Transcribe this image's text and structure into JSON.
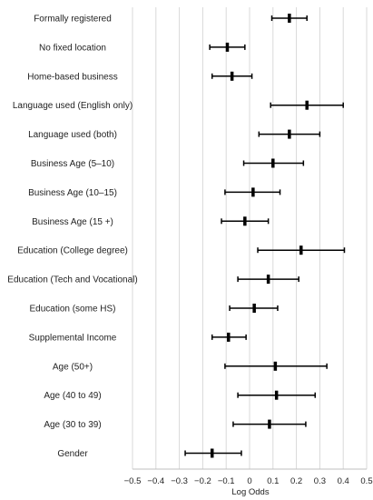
{
  "chart_data": {
    "type": "forest",
    "xlabel": "Log Odds",
    "xlim": [
      -0.5,
      0.5
    ],
    "xticks": [
      -0.5,
      -0.4,
      -0.3,
      -0.2,
      -0.1,
      0,
      0.1,
      0.2,
      0.3,
      0.4,
      0.5
    ],
    "xtick_labels": [
      "−0.5",
      "−0.4",
      "−0.3",
      "−0.2",
      "−0.1",
      "0",
      "0.1",
      "0.2",
      "0.3",
      "0.4",
      "0.5"
    ],
    "grid": true,
    "items": [
      {
        "label": "Formally registered",
        "estimate": 0.17,
        "lower": 0.095,
        "upper": 0.245
      },
      {
        "label": "No fixed location",
        "estimate": -0.095,
        "lower": -0.17,
        "upper": -0.02
      },
      {
        "label": "Home-based business",
        "estimate": -0.075,
        "lower": -0.16,
        "upper": 0.01
      },
      {
        "label": "Language used (English only)",
        "estimate": 0.245,
        "lower": 0.09,
        "upper": 0.4
      },
      {
        "label": "Language used (both)",
        "estimate": 0.17,
        "lower": 0.04,
        "upper": 0.3
      },
      {
        "label": "Business Age (5–10)",
        "estimate": 0.1,
        "lower": -0.025,
        "upper": 0.23
      },
      {
        "label": "Business Age (10–15)",
        "estimate": 0.015,
        "lower": -0.105,
        "upper": 0.13
      },
      {
        "label": "Business Age (15 +)",
        "estimate": -0.02,
        "lower": -0.12,
        "upper": 0.08
      },
      {
        "label": "Education (College degree)",
        "estimate": 0.22,
        "lower": 0.035,
        "upper": 0.405
      },
      {
        "label": "Education (Tech and Vocational)",
        "estimate": 0.08,
        "lower": -0.05,
        "upper": 0.21
      },
      {
        "label": "Education (some HS)",
        "estimate": 0.02,
        "lower": -0.085,
        "upper": 0.12
      },
      {
        "label": "Supplemental Income",
        "estimate": -0.09,
        "lower": -0.16,
        "upper": -0.015
      },
      {
        "label": "Age (50+)",
        "estimate": 0.11,
        "lower": -0.105,
        "upper": 0.33
      },
      {
        "label": "Age (40 to 49)",
        "estimate": 0.115,
        "lower": -0.05,
        "upper": 0.28
      },
      {
        "label": "Age (30 to 39)",
        "estimate": 0.085,
        "lower": -0.07,
        "upper": 0.24
      },
      {
        "label": "Gender",
        "estimate": -0.16,
        "lower": -0.275,
        "upper": -0.035
      }
    ]
  }
}
